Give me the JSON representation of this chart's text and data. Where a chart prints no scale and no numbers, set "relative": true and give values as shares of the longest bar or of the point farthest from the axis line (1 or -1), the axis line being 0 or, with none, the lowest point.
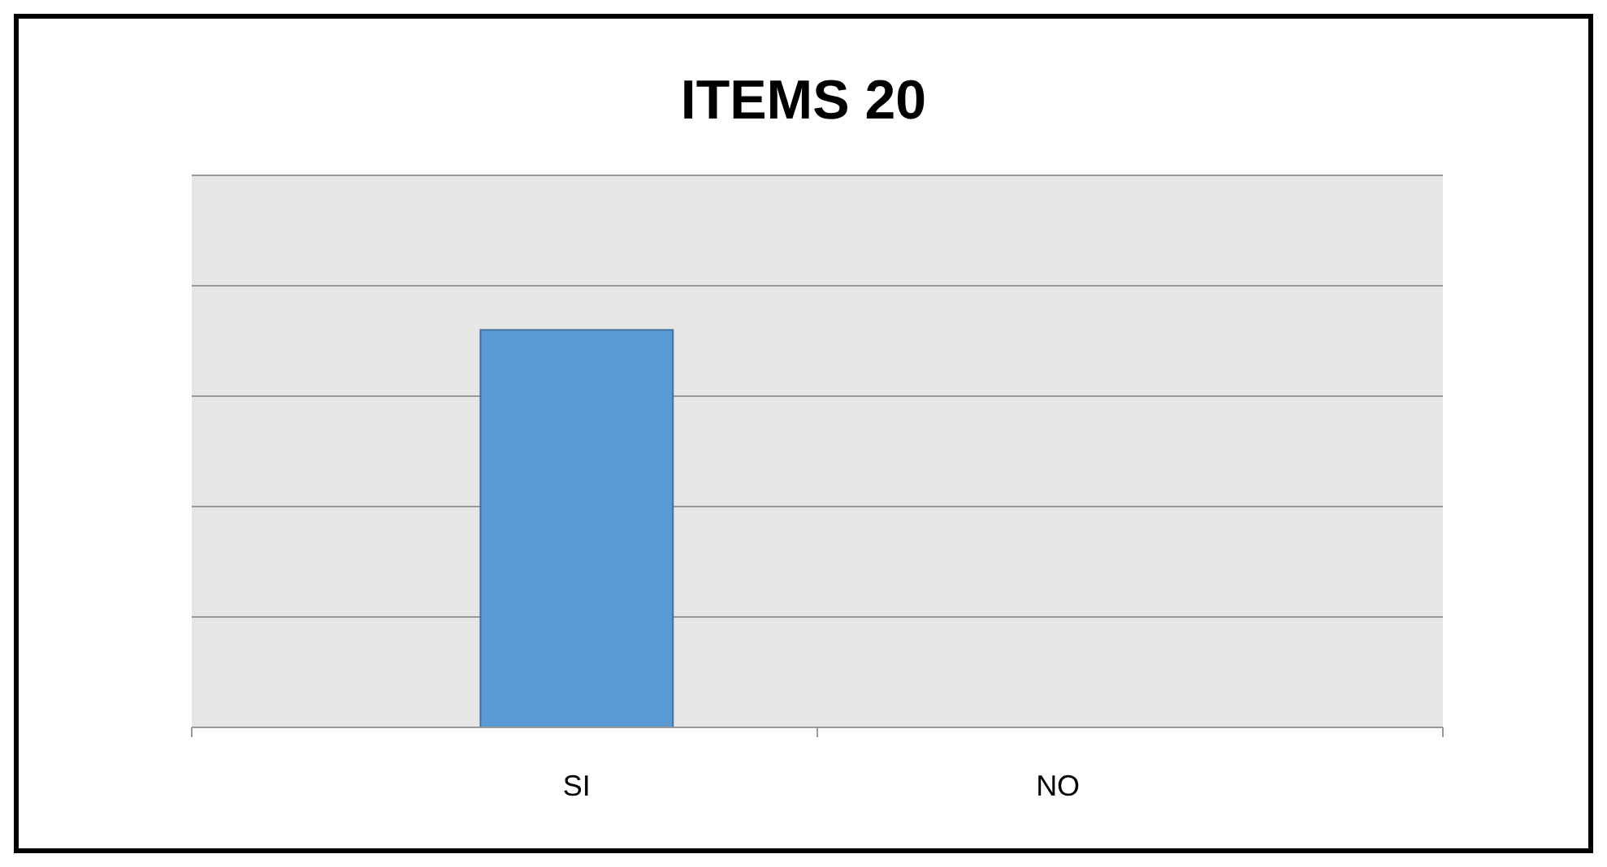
{
  "chart_data": {
    "type": "bar",
    "title": "ITEMS 20",
    "categories": [
      "SI",
      "NO"
    ],
    "values": [
      1,
      0
    ],
    "color": "#5b9bd5",
    "relative": true,
    "grid": true
  }
}
